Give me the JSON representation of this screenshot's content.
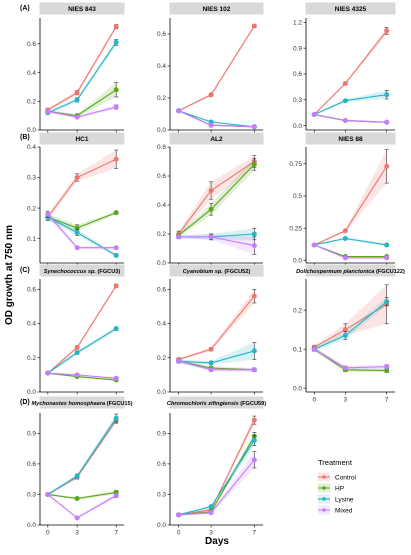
{
  "figure": {
    "ylabel": "OD growth at 750 nm",
    "xlabel": "Days",
    "legend_title": "Treatment",
    "row_labels": [
      "(A)",
      "(B)",
      "(C)",
      "(D)"
    ]
  },
  "colors": {
    "Control": "#f0766d",
    "HP": "#57a81d",
    "Lysine": "#26b5c4",
    "Mixed": "#c77cff"
  },
  "chart_data": [
    {
      "type": "line",
      "strain_plain": "NIES 843",
      "x": [
        0,
        3,
        7
      ],
      "ylim": [
        0.0,
        0.78
      ],
      "yticks": [
        0.0,
        0.2,
        0.4,
        0.6
      ],
      "series": [
        {
          "name": "Control",
          "values": [
            0.14,
            0.26,
            0.72
          ],
          "err": [
            0.01,
            0.015,
            0.015
          ]
        },
        {
          "name": "HP",
          "values": [
            0.13,
            0.1,
            0.28
          ],
          "err": [
            0.01,
            0.01,
            0.05
          ]
        },
        {
          "name": "Lysine",
          "values": [
            0.12,
            0.21,
            0.61
          ],
          "err": [
            0.01,
            0.015,
            0.02
          ]
        },
        {
          "name": "Mixed",
          "values": [
            0.13,
            0.09,
            0.16
          ],
          "err": [
            0.01,
            0.01,
            0.015
          ]
        }
      ]
    },
    {
      "type": "line",
      "strain_plain": "NIES 102",
      "x": [
        0,
        3,
        7
      ],
      "ylim": [
        0.0,
        0.7
      ],
      "yticks": [
        0.0,
        0.2,
        0.4,
        0.6
      ],
      "series": [
        {
          "name": "Control",
          "values": [
            0.12,
            0.22,
            0.65
          ],
          "err": [
            0.005,
            0.01,
            0.01
          ]
        },
        {
          "name": "HP",
          "values": [
            0.12,
            0.03,
            0.02
          ],
          "err": [
            0.005,
            0.005,
            0.005
          ]
        },
        {
          "name": "Lysine",
          "values": [
            0.12,
            0.05,
            0.02
          ],
          "err": [
            0.005,
            0.005,
            0.005
          ]
        },
        {
          "name": "Mixed",
          "values": [
            0.12,
            0.03,
            0.02
          ],
          "err": [
            0.005,
            0.005,
            0.005
          ]
        }
      ]
    },
    {
      "type": "line",
      "strain_plain": "NIES 4325",
      "x": [
        0,
        3,
        7
      ],
      "ylim": [
        -0.05,
        1.25
      ],
      "yticks": [
        0.0,
        0.3,
        0.6,
        0.9,
        1.2
      ],
      "series": [
        {
          "name": "Control",
          "values": [
            0.13,
            0.49,
            1.1
          ],
          "err": [
            0.01,
            0.015,
            0.04
          ]
        },
        {
          "name": "HP",
          "values": [
            0.13,
            0.06,
            0.04
          ],
          "err": [
            0.01,
            0.01,
            0.01
          ]
        },
        {
          "name": "Lysine",
          "values": [
            0.13,
            0.29,
            0.36
          ],
          "err": [
            0.01,
            0.015,
            0.05
          ]
        },
        {
          "name": "Mixed",
          "values": [
            0.13,
            0.06,
            0.04
          ],
          "err": [
            0.01,
            0.01,
            0.01
          ]
        }
      ]
    },
    {
      "type": "line",
      "strain_plain": "HC1",
      "x": [
        0,
        3,
        7
      ],
      "ylim": [
        0.02,
        0.4
      ],
      "yticks": [
        0.1,
        0.2,
        0.3,
        0.4
      ],
      "series": [
        {
          "name": "Control",
          "values": [
            0.17,
            0.3,
            0.36
          ],
          "err": [
            0.01,
            0.012,
            0.03
          ]
        },
        {
          "name": "HP",
          "values": [
            0.17,
            0.135,
            0.185
          ],
          "err": [
            0.01,
            0.01,
            0.005
          ]
        },
        {
          "name": "Lysine",
          "values": [
            0.17,
            0.12,
            0.045
          ],
          "err": [
            0.01,
            0.01,
            0.005
          ]
        },
        {
          "name": "Mixed",
          "values": [
            0.18,
            0.07,
            0.07
          ],
          "err": [
            0.01,
            0.005,
            0.005
          ]
        }
      ]
    },
    {
      "type": "line",
      "strain_plain": "AL2",
      "x": [
        0,
        3,
        7
      ],
      "ylim": [
        0.0,
        0.8
      ],
      "yticks": [
        0.0,
        0.2,
        0.4,
        0.6,
        0.8
      ],
      "series": [
        {
          "name": "Control",
          "values": [
            0.2,
            0.5,
            0.7
          ],
          "err": [
            0.02,
            0.06,
            0.04
          ]
        },
        {
          "name": "HP",
          "values": [
            0.19,
            0.37,
            0.68
          ],
          "err": [
            0.01,
            0.04,
            0.04
          ]
        },
        {
          "name": "Lysine",
          "values": [
            0.18,
            0.18,
            0.2
          ],
          "err": [
            0.01,
            0.02,
            0.04
          ]
        },
        {
          "name": "Mixed",
          "values": [
            0.18,
            0.18,
            0.12
          ],
          "err": [
            0.01,
            0.02,
            0.06
          ]
        }
      ]
    },
    {
      "type": "line",
      "strain_plain": "NIES 88",
      "x": [
        0,
        3,
        7
      ],
      "ylim": [
        -0.02,
        0.88
      ],
      "yticks": [
        0.0,
        0.25,
        0.5,
        0.75
      ],
      "series": [
        {
          "name": "Control",
          "values": [
            0.12,
            0.23,
            0.73
          ],
          "err": [
            0.005,
            0.01,
            0.13
          ]
        },
        {
          "name": "HP",
          "values": [
            0.12,
            0.03,
            0.03
          ],
          "err": [
            0.005,
            0.005,
            0.005
          ]
        },
        {
          "name": "Lysine",
          "values": [
            0.12,
            0.17,
            0.12
          ],
          "err": [
            0.005,
            0.01,
            0.01
          ]
        },
        {
          "name": "Mixed",
          "values": [
            0.12,
            0.02,
            0.02
          ],
          "err": [
            0.005,
            0.005,
            0.005
          ]
        }
      ]
    },
    {
      "type": "line",
      "strain_italic": "Synechococcus sp.",
      "strain_plain": "(FGCU3)",
      "x": [
        0,
        3,
        7
      ],
      "ylim": [
        0.0,
        0.66
      ],
      "yticks": [
        0.0,
        0.2,
        0.4,
        0.6
      ],
      "series": [
        {
          "name": "Control",
          "values": [
            0.11,
            0.26,
            0.62
          ],
          "err": [
            0.005,
            0.01,
            0.01
          ]
        },
        {
          "name": "HP",
          "values": [
            0.11,
            0.09,
            0.07
          ],
          "err": [
            0.005,
            0.005,
            0.005
          ]
        },
        {
          "name": "Lysine",
          "values": [
            0.11,
            0.23,
            0.37
          ],
          "err": [
            0.005,
            0.01,
            0.01
          ]
        },
        {
          "name": "Mixed",
          "values": [
            0.11,
            0.1,
            0.08
          ],
          "err": [
            0.005,
            0.005,
            0.005
          ]
        }
      ]
    },
    {
      "type": "line",
      "strain_italic": "Cyanobium sp.",
      "strain_plain": "(FGCU52)",
      "x": [
        0,
        3,
        7
      ],
      "ylim": [
        0.0,
        0.66
      ],
      "yticks": [
        0.0,
        0.2,
        0.4,
        0.6
      ],
      "series": [
        {
          "name": "Control",
          "values": [
            0.19,
            0.25,
            0.56
          ],
          "err": [
            0.01,
            0.01,
            0.04
          ]
        },
        {
          "name": "HP",
          "values": [
            0.18,
            0.14,
            0.13
          ],
          "err": [
            0.01,
            0.01,
            0.01
          ]
        },
        {
          "name": "Lysine",
          "values": [
            0.18,
            0.17,
            0.24
          ],
          "err": [
            0.01,
            0.01,
            0.05
          ]
        },
        {
          "name": "Mixed",
          "values": [
            0.18,
            0.13,
            0.13
          ],
          "err": [
            0.01,
            0.01,
            0.01
          ]
        }
      ]
    },
    {
      "type": "line",
      "strain_italic": "Dolichospermum planctonica",
      "strain_plain": "(FGCU122)",
      "x": [
        0,
        3,
        7
      ],
      "ylim": [
        -0.01,
        0.28
      ],
      "yticks": [
        0.0,
        0.1,
        0.2
      ],
      "series": [
        {
          "name": "Control",
          "values": [
            0.105,
            0.15,
            0.215
          ],
          "err": [
            0.005,
            0.015,
            0.05
          ]
        },
        {
          "name": "HP",
          "values": [
            0.1,
            0.047,
            0.045
          ],
          "err": [
            0.005,
            0.005,
            0.005
          ]
        },
        {
          "name": "Lysine",
          "values": [
            0.1,
            0.135,
            0.222
          ],
          "err": [
            0.005,
            0.01,
            0.01
          ]
        },
        {
          "name": "Mixed",
          "values": [
            0.1,
            0.052,
            0.055
          ],
          "err": [
            0.005,
            0.005,
            0.005
          ]
        }
      ]
    },
    {
      "type": "line",
      "strain_italic": "Mychonastes homosphaera",
      "strain_plain": "(FGCU15)",
      "x": [
        0,
        3,
        7
      ],
      "ylim": [
        0.0,
        1.1
      ],
      "yticks": [
        0.0,
        0.3,
        0.6,
        0.9
      ],
      "series": [
        {
          "name": "Control",
          "values": [
            0.3,
            0.47,
            1.03
          ],
          "err": [
            0.01,
            0.02,
            0.03
          ]
        },
        {
          "name": "HP",
          "values": [
            0.3,
            0.26,
            0.32
          ],
          "err": [
            0.01,
            0.01,
            0.02
          ]
        },
        {
          "name": "Lysine",
          "values": [
            0.3,
            0.48,
            1.05
          ],
          "err": [
            0.01,
            0.02,
            0.04
          ]
        },
        {
          "name": "Mixed",
          "values": [
            0.3,
            0.07,
            0.29
          ],
          "err": [
            0.01,
            0.01,
            0.02
          ]
        }
      ]
    },
    {
      "type": "line",
      "strain_italic": "Chromochloris zifingiensis",
      "strain_plain": "(FGCU59)",
      "x": [
        0,
        3,
        7
      ],
      "ylim": [
        0.0,
        1.1
      ],
      "yticks": [
        0.0,
        0.3,
        0.6,
        0.9
      ],
      "series": [
        {
          "name": "Control",
          "values": [
            0.1,
            0.15,
            1.03
          ],
          "err": [
            0.01,
            0.01,
            0.04
          ]
        },
        {
          "name": "HP",
          "values": [
            0.1,
            0.13,
            0.87
          ],
          "err": [
            0.01,
            0.01,
            0.04
          ]
        },
        {
          "name": "Lysine",
          "values": [
            0.1,
            0.18,
            0.83
          ],
          "err": [
            0.01,
            0.01,
            0.05
          ]
        },
        {
          "name": "Mixed",
          "values": [
            0.1,
            0.12,
            0.64
          ],
          "err": [
            0.01,
            0.01,
            0.08
          ]
        }
      ]
    }
  ]
}
